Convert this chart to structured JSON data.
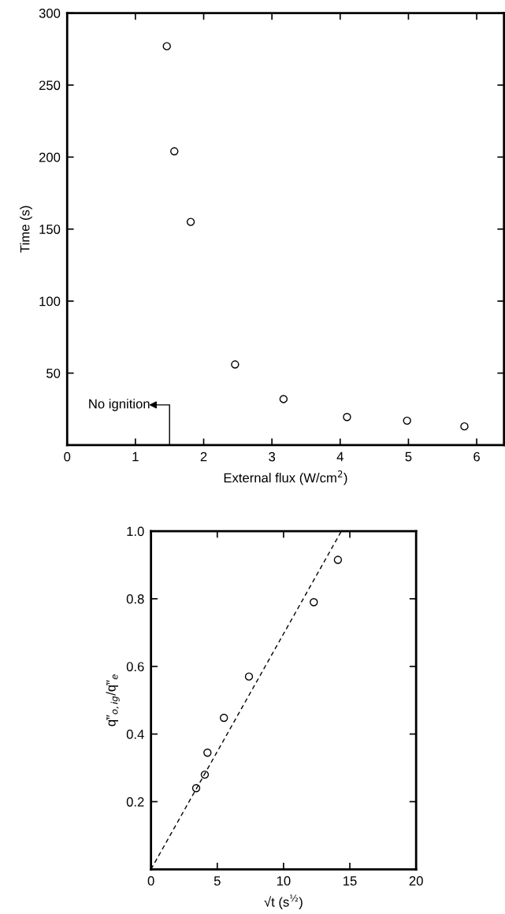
{
  "chart_data": [
    {
      "type": "scatter",
      "xlabel": "External flux (W/cm$^{2}$)",
      "ylabel": "Time (s)",
      "xlim": [
        0,
        6.4
      ],
      "ylim": [
        0,
        300
      ],
      "xticks": [
        0,
        1,
        2,
        3,
        4,
        5,
        6
      ],
      "yticks": [
        50,
        100,
        150,
        200,
        250,
        300
      ],
      "grid": false,
      "legend": false,
      "marker": "circle",
      "series": [
        {
          "color": "#000000",
          "x": [
            1.46,
            1.57,
            1.81,
            2.46,
            3.17,
            4.1,
            4.98,
            5.82
          ],
          "values": [
            277,
            204,
            155,
            56,
            32,
            19.5,
            17,
            13
          ]
        }
      ],
      "annotations": [
        "No ignition"
      ]
    },
    {
      "type": "scatter",
      "xlabel": "√t (s$^{½}$)",
      "ylabel": "q̇″$_{o,ig}$/q̇″$_{e}$",
      "xlim": [
        0,
        20
      ],
      "ylim": [
        0,
        1.0
      ],
      "xticks": [
        0,
        5,
        10,
        15,
        20
      ],
      "yticks": [
        0.2,
        0.4,
        0.6,
        0.8,
        {
          "value": 1.0,
          "label": "1.0"
        }
      ],
      "grid": false,
      "legend": false,
      "marker": "circle",
      "series": [
        {
          "color": "#000000",
          "x": [
            3.41,
            4.06,
            4.26,
            5.5,
            7.39,
            12.28,
            14.1
          ],
          "values": [
            0.24,
            0.28,
            0.345,
            0.448,
            0.57,
            0.79,
            0.915
          ]
        },
        {
          "type": "line",
          "color": "#000000",
          "line_style": "dashed",
          "marker": "none",
          "x": [
            0,
            14.36
          ],
          "values": [
            0,
            1.0
          ]
        }
      ]
    }
  ]
}
